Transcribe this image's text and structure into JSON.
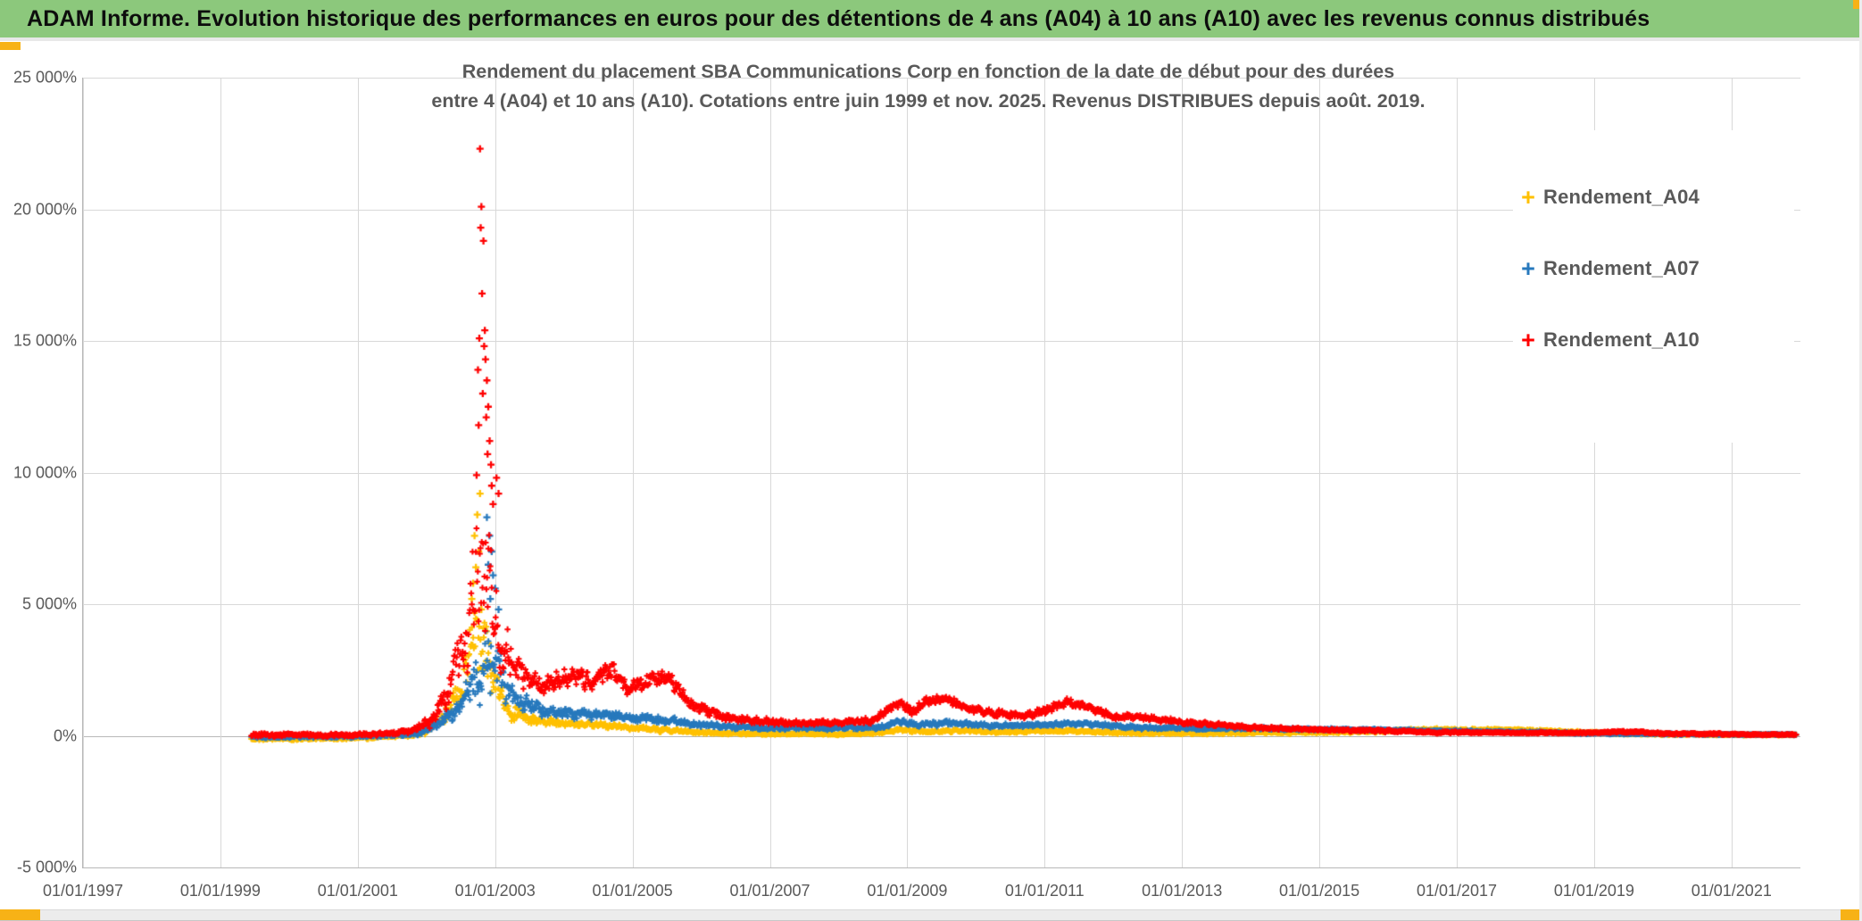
{
  "header": {
    "title": "ADAM Informe. Evolution historique des performances en euros pour des détentions de 4 ans (A04) à 10 ans (A10) avec les revenus connus distribués",
    "bg_color": "#8CC87C",
    "accent_color": "#F7B216"
  },
  "chart_data": {
    "type": "scatter",
    "marker": "plus",
    "title_lines": [
      "Rendement du placement SBA Communications Corp en fonction de la date de début pour des durées",
      "entre 4 (A04) et 10 ans (A10). Cotations entre juin 1999 et nov. 2025. Revenus DISTRIBUES depuis août. 2019."
    ],
    "legend_marker": "+",
    "legend_position": "right",
    "grid": true,
    "x_axis": {
      "tick_labels": [
        "01/01/1997",
        "01/01/1999",
        "01/01/2001",
        "01/01/2003",
        "01/01/2005",
        "01/01/2007",
        "01/01/2009",
        "01/01/2011",
        "01/01/2013",
        "01/01/2015",
        "01/01/2017",
        "01/01/2019",
        "01/01/2021"
      ],
      "tick_years": [
        1997,
        1999,
        2001,
        2003,
        2005,
        2007,
        2009,
        2011,
        2013,
        2015,
        2017,
        2019,
        2021
      ],
      "range_years": [
        1997,
        2022.1
      ]
    },
    "y_axis": {
      "tick_labels": [
        "-5 000%",
        "0%",
        "5 000%",
        "10 000%",
        "15 000%",
        "20 000%",
        "25 000%"
      ],
      "tick_values": [
        -5000,
        0,
        5000,
        10000,
        15000,
        20000,
        25000
      ],
      "range": [
        -5000,
        25000
      ],
      "unit": "%"
    },
    "legend": [
      {
        "name": "Rendement_A04",
        "color": "#FFC000"
      },
      {
        "name": "Rendement_A07",
        "color": "#2779BD"
      },
      {
        "name": "Rendement_A10",
        "color": "#FF0000"
      }
    ],
    "sampling": {
      "start_year": 1999.45,
      "end_year": 2021.95,
      "points_per_year": 104,
      "note": "weekly return observations by start date; envelope = [year, center%, half_spread%]"
    },
    "series": [
      {
        "name": "Rendement_A04",
        "color": "#FFC000",
        "peak_value_pct": 9200,
        "peak_year": 2002.78,
        "envelope": [
          [
            1999.45,
            -110,
            70
          ],
          [
            2001.0,
            -90,
            60
          ],
          [
            2001.9,
            30,
            80
          ],
          [
            2002.2,
            500,
            250
          ],
          [
            2002.5,
            1800,
            700
          ],
          [
            2002.7,
            3200,
            1700
          ],
          [
            2002.85,
            3600,
            1900
          ],
          [
            2003.0,
            2100,
            850
          ],
          [
            2003.2,
            1000,
            350
          ],
          [
            2003.6,
            600,
            180
          ],
          [
            2004.0,
            500,
            140
          ],
          [
            2004.5,
            430,
            120
          ],
          [
            2005.0,
            300,
            100
          ],
          [
            2005.5,
            220,
            80
          ],
          [
            2006.0,
            130,
            60
          ],
          [
            2006.5,
            90,
            50
          ],
          [
            2007.0,
            70,
            45
          ],
          [
            2008.0,
            60,
            45
          ],
          [
            2008.6,
            120,
            60
          ],
          [
            2008.9,
            230,
            80
          ],
          [
            2009.3,
            160,
            60
          ],
          [
            2009.7,
            190,
            60
          ],
          [
            2010.2,
            150,
            55
          ],
          [
            2011.0,
            180,
            60
          ],
          [
            2011.5,
            200,
            60
          ],
          [
            2012.0,
            120,
            50
          ],
          [
            2013.0,
            90,
            45
          ],
          [
            2014.0,
            110,
            45
          ],
          [
            2015.0,
            130,
            45
          ],
          [
            2016.0,
            180,
            50
          ],
          [
            2016.6,
            250,
            55
          ],
          [
            2017.2,
            240,
            55
          ],
          [
            2018.0,
            210,
            50
          ],
          [
            2018.8,
            150,
            45
          ],
          [
            2019.3,
            90,
            40
          ],
          [
            2020.0,
            60,
            35
          ],
          [
            2021.0,
            40,
            30
          ],
          [
            2021.95,
            35,
            30
          ]
        ],
        "outliers": [
          [
            2002.78,
            9200
          ],
          [
            2002.74,
            8400
          ],
          [
            2002.7,
            7600
          ],
          [
            2002.76,
            7000
          ],
          [
            2002.72,
            6400
          ],
          [
            2002.68,
            5800
          ],
          [
            2002.66,
            5200
          ],
          [
            2002.8,
            4800
          ]
        ]
      },
      {
        "name": "Rendement_A07",
        "color": "#2779BD",
        "peak_value_pct": 8300,
        "peak_year": 2002.88,
        "envelope": [
          [
            1999.45,
            -40,
            60
          ],
          [
            2001.0,
            -20,
            60
          ],
          [
            2001.8,
            60,
            80
          ],
          [
            2002.2,
            400,
            200
          ],
          [
            2002.5,
            1200,
            500
          ],
          [
            2002.75,
            2600,
            1500
          ],
          [
            2002.9,
            3000,
            1700
          ],
          [
            2003.0,
            2600,
            1400
          ],
          [
            2003.15,
            1800,
            700
          ],
          [
            2003.35,
            1300,
            400
          ],
          [
            2003.7,
            900,
            250
          ],
          [
            2004.2,
            850,
            220
          ],
          [
            2004.7,
            800,
            200
          ],
          [
            2005.1,
            650,
            160
          ],
          [
            2005.6,
            550,
            140
          ],
          [
            2006.0,
            420,
            110
          ],
          [
            2006.5,
            330,
            90
          ],
          [
            2007.0,
            300,
            80
          ],
          [
            2008.0,
            280,
            80
          ],
          [
            2008.6,
            330,
            90
          ],
          [
            2008.9,
            520,
            120
          ],
          [
            2009.2,
            430,
            100
          ],
          [
            2009.6,
            480,
            110
          ],
          [
            2010.0,
            420,
            90
          ],
          [
            2010.5,
            380,
            85
          ],
          [
            2011.0,
            420,
            90
          ],
          [
            2011.4,
            480,
            100
          ],
          [
            2012.0,
            360,
            80
          ],
          [
            2012.6,
            310,
            70
          ],
          [
            2013.2,
            290,
            65
          ],
          [
            2014.0,
            280,
            60
          ],
          [
            2015.0,
            250,
            55
          ],
          [
            2016.0,
            220,
            50
          ],
          [
            2017.0,
            180,
            45
          ],
          [
            2018.0,
            140,
            40
          ],
          [
            2019.0,
            100,
            40
          ],
          [
            2020.0,
            70,
            35
          ],
          [
            2021.0,
            50,
            30
          ],
          [
            2021.95,
            45,
            30
          ]
        ],
        "outliers": [
          [
            2002.88,
            8300
          ],
          [
            2002.92,
            7600
          ],
          [
            2002.95,
            7000
          ],
          [
            2002.9,
            6500
          ],
          [
            2002.97,
            6100
          ],
          [
            2003.0,
            5600
          ],
          [
            2002.93,
            5200
          ],
          [
            2003.05,
            4800
          ]
        ]
      },
      {
        "name": "Rendement_A10",
        "color": "#FF0000",
        "peak_value_pct": 22300,
        "peak_year": 2002.78,
        "envelope": [
          [
            1999.45,
            30,
            80
          ],
          [
            2000.5,
            30,
            70
          ],
          [
            2001.4,
            60,
            80
          ],
          [
            2001.8,
            200,
            120
          ],
          [
            2002.1,
            700,
            300
          ],
          [
            2002.35,
            2000,
            800
          ],
          [
            2002.55,
            4000,
            1600
          ],
          [
            2002.7,
            5800,
            2900
          ],
          [
            2002.8,
            6500,
            3200
          ],
          [
            2002.9,
            6000,
            3000
          ],
          [
            2003.0,
            4500,
            2200
          ],
          [
            2003.12,
            3000,
            1100
          ],
          [
            2003.4,
            2200,
            600
          ],
          [
            2003.8,
            2000,
            450
          ],
          [
            2004.1,
            2300,
            450
          ],
          [
            2004.4,
            2100,
            400
          ],
          [
            2004.7,
            2500,
            400
          ],
          [
            2004.95,
            1700,
            350
          ],
          [
            2005.2,
            2000,
            350
          ],
          [
            2005.5,
            2200,
            400
          ],
          [
            2005.8,
            1300,
            300
          ],
          [
            2006.1,
            900,
            200
          ],
          [
            2006.5,
            650,
            150
          ],
          [
            2007.0,
            520,
            120
          ],
          [
            2007.5,
            480,
            100
          ],
          [
            2008.0,
            500,
            110
          ],
          [
            2008.5,
            600,
            130
          ],
          [
            2008.85,
            1250,
            200
          ],
          [
            2009.05,
            950,
            180
          ],
          [
            2009.35,
            1350,
            200
          ],
          [
            2009.6,
            1400,
            180
          ],
          [
            2009.9,
            1000,
            180
          ],
          [
            2010.3,
            850,
            160
          ],
          [
            2010.7,
            800,
            150
          ],
          [
            2011.0,
            950,
            180
          ],
          [
            2011.35,
            1250,
            200
          ],
          [
            2011.6,
            1100,
            180
          ],
          [
            2012.0,
            750,
            140
          ],
          [
            2012.5,
            650,
            120
          ],
          [
            2013.0,
            520,
            100
          ],
          [
            2013.5,
            420,
            90
          ],
          [
            2014.0,
            320,
            70
          ],
          [
            2014.5,
            280,
            65
          ],
          [
            2015.0,
            230,
            60
          ],
          [
            2016.0,
            180,
            50
          ],
          [
            2017.0,
            130,
            45
          ],
          [
            2018.0,
            110,
            40
          ],
          [
            2019.0,
            110,
            40
          ],
          [
            2019.4,
            170,
            50
          ],
          [
            2020.0,
            90,
            40
          ],
          [
            2021.0,
            60,
            35
          ],
          [
            2021.95,
            50,
            35
          ]
        ],
        "outliers": [
          [
            2002.78,
            22300
          ],
          [
            2002.8,
            20100
          ],
          [
            2002.79,
            19300
          ],
          [
            2002.83,
            18800
          ],
          [
            2002.81,
            16800
          ],
          [
            2002.85,
            15400
          ],
          [
            2002.77,
            15100
          ],
          [
            2002.84,
            14800
          ],
          [
            2002.86,
            14300
          ],
          [
            2002.75,
            13900
          ],
          [
            2002.88,
            13500
          ],
          [
            2002.82,
            13000
          ],
          [
            2002.9,
            12500
          ],
          [
            2002.87,
            12100
          ],
          [
            2002.76,
            11800
          ],
          [
            2002.92,
            11200
          ],
          [
            2002.89,
            10700
          ],
          [
            2002.94,
            10300
          ],
          [
            2002.73,
            9900
          ],
          [
            2002.95,
            9500
          ],
          [
            2002.97,
            8800
          ],
          [
            2003.02,
            9800
          ],
          [
            2003.05,
            9200
          ]
        ]
      }
    ]
  },
  "colors": {
    "grid": "#D8D8D8",
    "axis": "#B8B8B8",
    "axis_text": "#595959",
    "title_text": "#595959"
  }
}
